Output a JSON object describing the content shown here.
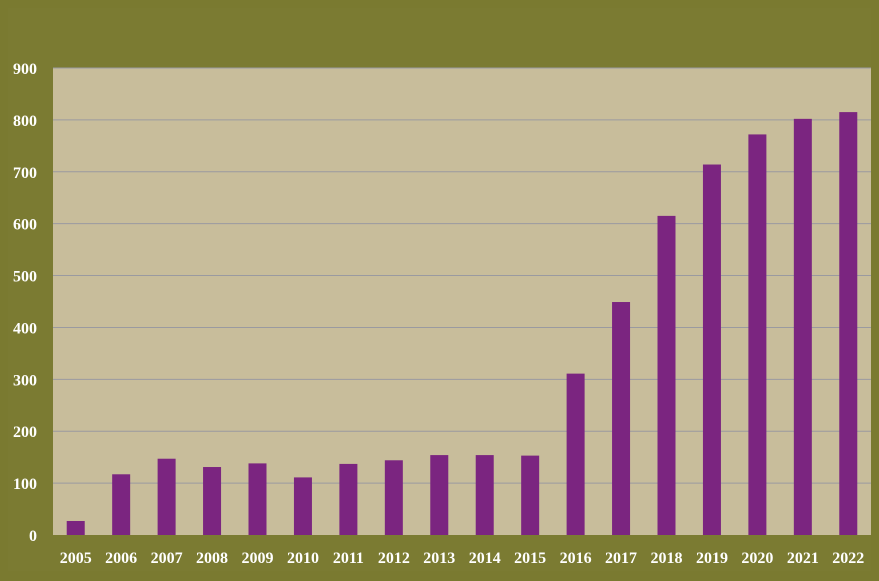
{
  "colors": {
    "background": "#7a7a30",
    "plot_area": "#c8bd9b",
    "bar": "#7b2580",
    "gridline": "#9a9aa0",
    "label": "#ffffff"
  },
  "chart_data": {
    "type": "bar",
    "title": "",
    "xlabel": "",
    "ylabel": "",
    "categories": [
      "2005",
      "2006",
      "2007",
      "2008",
      "2009",
      "2010",
      "2011",
      "2012",
      "2013",
      "2014",
      "2015",
      "2016",
      "2017",
      "2018",
      "2019",
      "2020",
      "2021",
      "2022"
    ],
    "values": [
      27,
      117,
      147,
      131,
      138,
      111,
      137,
      144,
      154,
      154,
      153,
      311,
      449,
      615,
      714,
      772,
      802,
      815
    ],
    "ylim": [
      0,
      900
    ],
    "yticks": [
      0,
      100,
      200,
      300,
      400,
      500,
      600,
      700,
      800,
      900
    ],
    "grid": true,
    "legend": "none"
  }
}
